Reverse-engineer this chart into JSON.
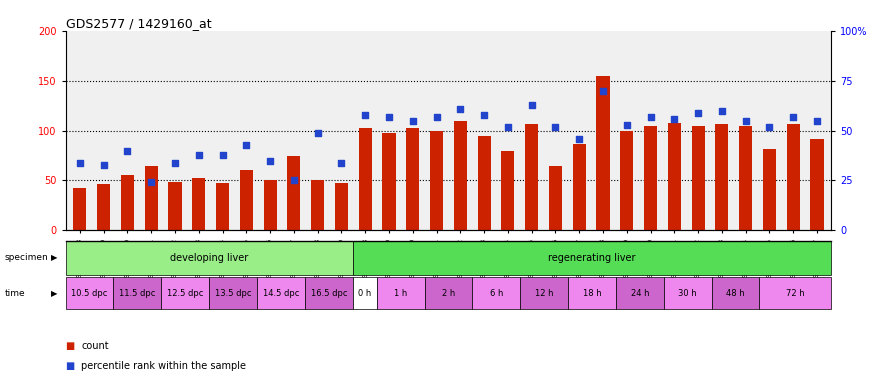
{
  "title": "GDS2577 / 1429160_at",
  "samples": [
    "GSM161128",
    "GSM161129",
    "GSM161130",
    "GSM161131",
    "GSM161132",
    "GSM161133",
    "GSM161134",
    "GSM161135",
    "GSM161136",
    "GSM161137",
    "GSM161138",
    "GSM161139",
    "GSM161108",
    "GSM161109",
    "GSM161110",
    "GSM161111",
    "GSM161112",
    "GSM161113",
    "GSM161114",
    "GSM161115",
    "GSM161116",
    "GSM161117",
    "GSM161118",
    "GSM161119",
    "GSM161120",
    "GSM161121",
    "GSM161122",
    "GSM161123",
    "GSM161124",
    "GSM161125",
    "GSM161126",
    "GSM161127"
  ],
  "counts": [
    42,
    46,
    55,
    65,
    48,
    52,
    47,
    60,
    50,
    75,
    50,
    47,
    103,
    98,
    103,
    100,
    110,
    95,
    80,
    107,
    65,
    87,
    155,
    100,
    105,
    108,
    105,
    107,
    105,
    82,
    107,
    92
  ],
  "percentiles": [
    34,
    33,
    40,
    24,
    34,
    38,
    38,
    43,
    35,
    25,
    49,
    34,
    58,
    57,
    55,
    57,
    61,
    58,
    52,
    63,
    52,
    46,
    70,
    53,
    57,
    56,
    59,
    60,
    55,
    52,
    57,
    55
  ],
  "specimen_groups": [
    {
      "label": "developing liver",
      "start": 0,
      "end": 12,
      "color": "#99ee88"
    },
    {
      "label": "regenerating liver",
      "start": 12,
      "end": 32,
      "color": "#55dd55"
    }
  ],
  "time_groups": [
    {
      "label": "10.5 dpc",
      "start": 0,
      "end": 2,
      "color": "#ee88ee"
    },
    {
      "label": "11.5 dpc",
      "start": 2,
      "end": 4,
      "color": "#cc66cc"
    },
    {
      "label": "12.5 dpc",
      "start": 4,
      "end": 6,
      "color": "#ee88ee"
    },
    {
      "label": "13.5 dpc",
      "start": 6,
      "end": 8,
      "color": "#cc66cc"
    },
    {
      "label": "14.5 dpc",
      "start": 8,
      "end": 10,
      "color": "#ee88ee"
    },
    {
      "label": "16.5 dpc",
      "start": 10,
      "end": 12,
      "color": "#cc66cc"
    },
    {
      "label": "0 h",
      "start": 12,
      "end": 13,
      "color": "#ffffff"
    },
    {
      "label": "1 h",
      "start": 13,
      "end": 15,
      "color": "#ee88ee"
    },
    {
      "label": "2 h",
      "start": 15,
      "end": 17,
      "color": "#cc66cc"
    },
    {
      "label": "6 h",
      "start": 17,
      "end": 19,
      "color": "#ee88ee"
    },
    {
      "label": "12 h",
      "start": 19,
      "end": 21,
      "color": "#cc66cc"
    },
    {
      "label": "18 h",
      "start": 21,
      "end": 23,
      "color": "#ee88ee"
    },
    {
      "label": "24 h",
      "start": 23,
      "end": 25,
      "color": "#cc66cc"
    },
    {
      "label": "30 h",
      "start": 25,
      "end": 27,
      "color": "#ee88ee"
    },
    {
      "label": "48 h",
      "start": 27,
      "end": 29,
      "color": "#cc66cc"
    },
    {
      "label": "72 h",
      "start": 29,
      "end": 32,
      "color": "#ee88ee"
    }
  ],
  "ylim_left": [
    0,
    200
  ],
  "ylim_right": [
    0,
    100
  ],
  "yticks_left": [
    0,
    50,
    100,
    150,
    200
  ],
  "yticks_right": [
    0,
    25,
    50,
    75,
    100
  ],
  "ytick_labels_right": [
    "0",
    "25",
    "50",
    "75",
    "100%"
  ],
  "bar_color": "#cc2200",
  "dot_color": "#2244cc",
  "bar_width": 0.55,
  "legend_count_label": "count",
  "legend_pct_label": "percentile rank within the sample"
}
